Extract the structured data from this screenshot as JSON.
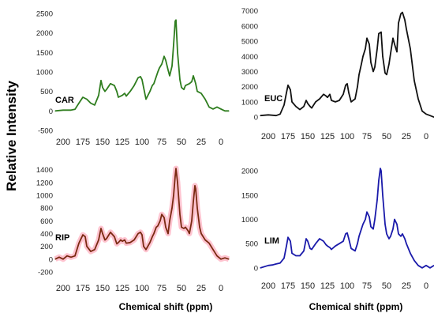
{
  "figure": {
    "ylabel": "Relative Intensity",
    "xlabels": [
      "Chemical shift (ppm)",
      "Chemical shift (ppm)"
    ]
  },
  "chart_data": [
    {
      "type": "line",
      "label": "CAR",
      "color": "#2e7d1e",
      "xlim": [
        210,
        -10
      ],
      "ylim": [
        -500,
        2600
      ],
      "yticks": [
        -500,
        0,
        500,
        1000,
        1500,
        2000,
        2500
      ],
      "xticks": [
        200,
        175,
        150,
        125,
        100,
        75,
        50,
        25,
        0
      ],
      "x": [
        210,
        200,
        190,
        185,
        180,
        175,
        170,
        165,
        160,
        155,
        152,
        150,
        147,
        145,
        140,
        135,
        132,
        130,
        125,
        122,
        120,
        115,
        110,
        105,
        102,
        100,
        98,
        95,
        90,
        87,
        85,
        80,
        78,
        75,
        72,
        70,
        67,
        65,
        62,
        60,
        58,
        57,
        55,
        52,
        50,
        47,
        45,
        40,
        37,
        35,
        32,
        30,
        25,
        20,
        15,
        10,
        5,
        0,
        -5,
        -10
      ],
      "y": [
        0,
        20,
        20,
        40,
        200,
        350,
        300,
        200,
        150,
        400,
        780,
        600,
        500,
        550,
        700,
        650,
        500,
        350,
        400,
        450,
        380,
        500,
        650,
        850,
        880,
        800,
        600,
        300,
        500,
        650,
        700,
        1000,
        1100,
        1200,
        1400,
        1300,
        1050,
        900,
        1150,
        1700,
        2300,
        2330,
        1500,
        800,
        600,
        550,
        650,
        700,
        750,
        900,
        700,
        500,
        450,
        300,
        100,
        50,
        100,
        50,
        0,
        0
      ]
    },
    {
      "type": "line",
      "label": "EUC",
      "color": "#111111",
      "xlim": [
        210,
        -10
      ],
      "ylim": [
        -200,
        7400
      ],
      "yticks": [
        0,
        1000,
        2000,
        3000,
        4000,
        5000,
        6000,
        7000
      ],
      "xticks": [
        200,
        175,
        150,
        125,
        100,
        75,
        50,
        25,
        0
      ],
      "x": [
        210,
        200,
        190,
        185,
        180,
        177,
        175,
        172,
        170,
        165,
        160,
        155,
        152,
        150,
        147,
        145,
        140,
        135,
        130,
        127,
        125,
        122,
        120,
        115,
        110,
        105,
        102,
        100,
        98,
        95,
        90,
        87,
        85,
        82,
        80,
        77,
        75,
        72,
        70,
        67,
        65,
        62,
        60,
        57,
        55,
        52,
        50,
        47,
        45,
        42,
        40,
        37,
        35,
        32,
        30,
        27,
        25,
        20,
        15,
        10,
        5,
        0,
        -5,
        -10
      ],
      "y": [
        100,
        150,
        100,
        200,
        800,
        1600,
        2100,
        1800,
        1000,
        700,
        500,
        700,
        1100,
        900,
        700,
        600,
        1000,
        1200,
        1500,
        1400,
        1300,
        1500,
        1100,
        1000,
        1100,
        1500,
        2100,
        2200,
        1600,
        1000,
        1200,
        2000,
        2800,
        3500,
        4000,
        4500,
        5200,
        4800,
        3600,
        3000,
        3300,
        4500,
        5500,
        5600,
        4000,
        2900,
        2800,
        3500,
        4200,
        5200,
        4800,
        4300,
        6200,
        6800,
        6900,
        6400,
        5800,
        4500,
        2400,
        1200,
        400,
        200,
        100,
        0
      ]
    },
    {
      "type": "line",
      "label": "RIP",
      "color": "#7a2a12",
      "highlight_color": "#ffb0c0",
      "xlim": [
        210,
        -10
      ],
      "ylim": [
        -300,
        1520
      ],
      "yticks": [
        -200,
        0,
        200,
        400,
        600,
        800,
        1000,
        1200,
        1400
      ],
      "xticks": [
        200,
        175,
        150,
        125,
        100,
        75,
        50,
        25,
        0
      ],
      "x": [
        210,
        205,
        200,
        195,
        190,
        185,
        180,
        175,
        172,
        170,
        165,
        160,
        155,
        152,
        150,
        147,
        145,
        140,
        135,
        132,
        130,
        127,
        125,
        122,
        120,
        115,
        110,
        105,
        102,
        100,
        98,
        95,
        90,
        87,
        85,
        82,
        80,
        77,
        75,
        72,
        70,
        67,
        65,
        62,
        60,
        58,
        57,
        55,
        52,
        50,
        47,
        45,
        42,
        40,
        37,
        35,
        33,
        32,
        30,
        27,
        25,
        20,
        15,
        10,
        5,
        0,
        -5,
        -10
      ],
      "y": [
        0,
        30,
        0,
        50,
        30,
        50,
        250,
        380,
        350,
        200,
        120,
        150,
        300,
        480,
        400,
        300,
        320,
        420,
        350,
        240,
        260,
        300,
        280,
        300,
        250,
        260,
        300,
        400,
        420,
        380,
        200,
        150,
        260,
        350,
        400,
        500,
        520,
        600,
        700,
        650,
        500,
        400,
        600,
        800,
        1000,
        1300,
        1420,
        1200,
        700,
        500,
        480,
        500,
        450,
        400,
        600,
        900,
        1150,
        1100,
        800,
        500,
        400,
        300,
        250,
        150,
        50,
        0,
        20,
        0
      ]
    },
    {
      "type": "line",
      "label": "LIM",
      "color": "#1a1aaa",
      "xlim": [
        210,
        -10
      ],
      "ylim": [
        -100,
        2180
      ],
      "yticks": [
        0,
        500,
        1000,
        1500,
        2000
      ],
      "xticks": [
        200,
        175,
        150,
        125,
        100,
        75,
        50,
        25,
        0
      ],
      "x": [
        210,
        200,
        195,
        190,
        185,
        180,
        177,
        175,
        172,
        170,
        165,
        160,
        155,
        152,
        150,
        147,
        145,
        140,
        135,
        130,
        127,
        125,
        122,
        120,
        115,
        110,
        105,
        102,
        100,
        98,
        95,
        90,
        87,
        85,
        82,
        80,
        77,
        75,
        72,
        70,
        67,
        65,
        62,
        60,
        58,
        57,
        55,
        52,
        50,
        47,
        45,
        42,
        40,
        37,
        35,
        32,
        30,
        27,
        25,
        20,
        15,
        10,
        5,
        0,
        -5,
        -10
      ],
      "y": [
        0,
        50,
        60,
        80,
        100,
        200,
        450,
        630,
        550,
        300,
        250,
        250,
        350,
        600,
        550,
        400,
        380,
        500,
        600,
        550,
        480,
        450,
        420,
        380,
        450,
        500,
        550,
        700,
        720,
        600,
        400,
        350,
        500,
        650,
        800,
        900,
        1000,
        1150,
        1050,
        850,
        800,
        1000,
        1400,
        1800,
        2050,
        2000,
        1500,
        900,
        700,
        600,
        650,
        800,
        1000,
        900,
        700,
        650,
        700,
        600,
        500,
        300,
        150,
        50,
        0,
        50,
        0,
        50
      ]
    }
  ]
}
